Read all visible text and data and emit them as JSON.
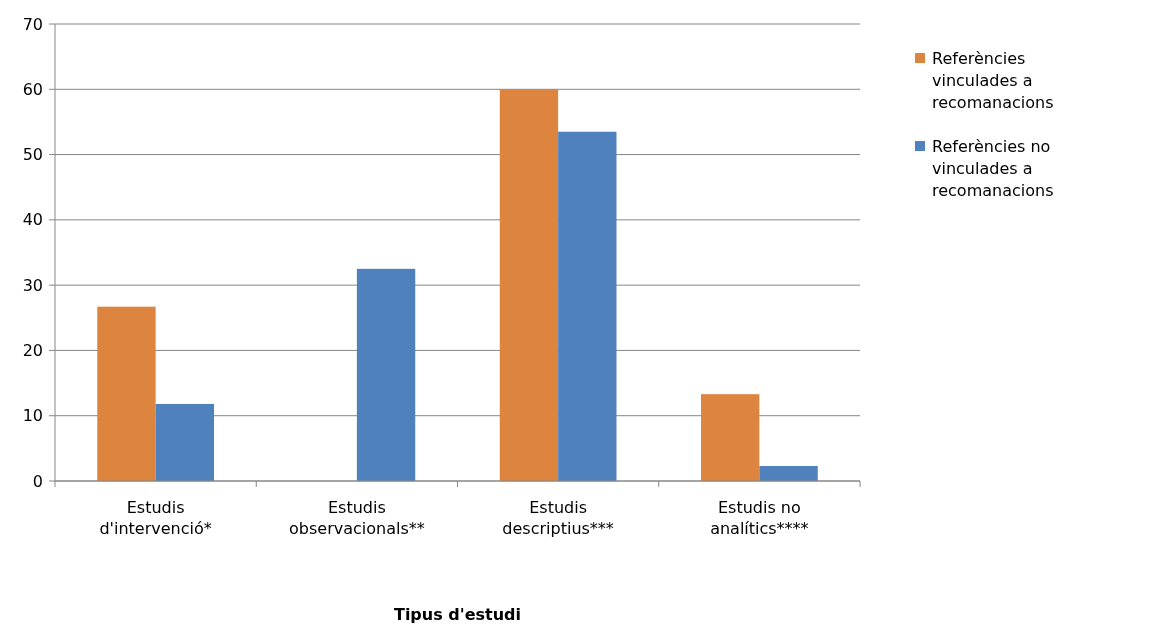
{
  "chart_data": {
    "type": "bar",
    "xlabel": "Tipus d'estudi",
    "categories": [
      "Estudis d'intervenció*",
      "Estudis observacionals**",
      "Estudis descriptius***",
      "Estudis no analítics****"
    ],
    "series": [
      {
        "name": "Referències vinculades a recomanacions",
        "color": "#dd843e",
        "values": [
          26.7,
          0,
          60,
          13.3
        ]
      },
      {
        "name": "Referències no vinculades a recomanacions",
        "color": "#4f81bd",
        "values": [
          11.8,
          32.5,
          53.5,
          2.3
        ]
      }
    ],
    "ylim": [
      0,
      70
    ],
    "yticks": [
      0,
      10,
      20,
      30,
      40,
      50,
      60,
      70
    ],
    "grid": "y",
    "legend": "right"
  }
}
